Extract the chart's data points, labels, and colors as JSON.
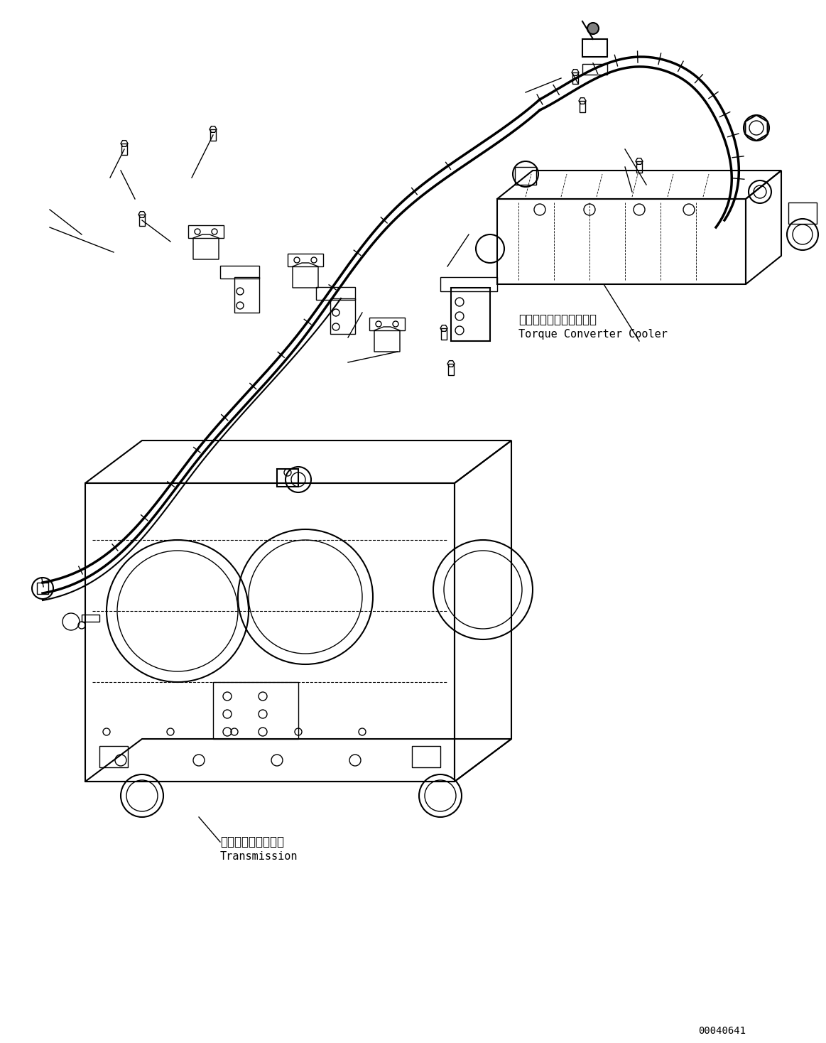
{
  "title": "",
  "background_color": "#ffffff",
  "line_color": "#000000",
  "text_color": "#000000",
  "label_torque_converter_jp": "トルクコンバータクーラ",
  "label_torque_converter_en": "Torque Converter Cooler",
  "label_transmission_jp": "トランスミッション",
  "label_transmission_en": "Transmission",
  "part_number": "00040641",
  "fig_width": 11.63,
  "fig_height": 14.68,
  "dpi": 100
}
